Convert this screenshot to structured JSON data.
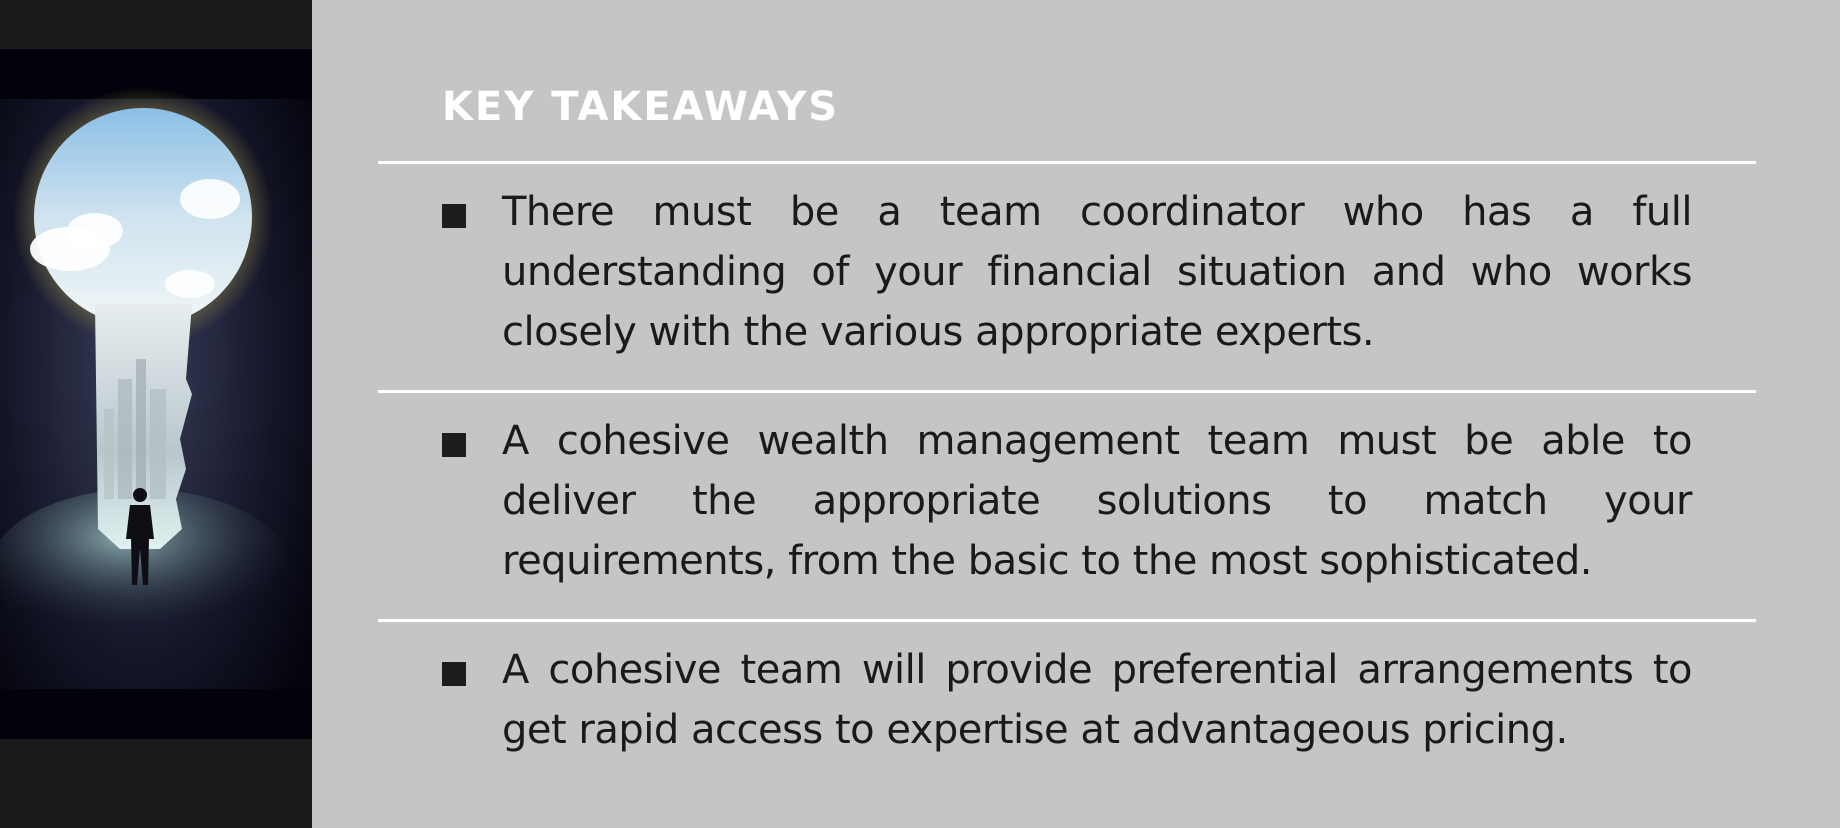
{
  "header": {
    "title": "KEY TAKEAWAYS"
  },
  "takeaways": [
    {
      "text": "There must be a team coordinator who has a full understanding of your financial situation and who works closely with the various appropriate experts."
    },
    {
      "text": "A cohesive wealth management team must be able to deliver the appropriate solutions to match your requirements, from the basic to the most sophisticated."
    },
    {
      "text": "A cohesive team will provide preferential arrangements to get rapid access to expertise at advantageous pricing."
    }
  ],
  "image": {
    "subject": "keyhole-silhouette-skyline-photo"
  },
  "colors": {
    "panel": "#c5c5c5",
    "left_band": "#1b1b1b",
    "title": "#ffffff",
    "text": "#1a1a1a",
    "rule": "#ffffff"
  }
}
